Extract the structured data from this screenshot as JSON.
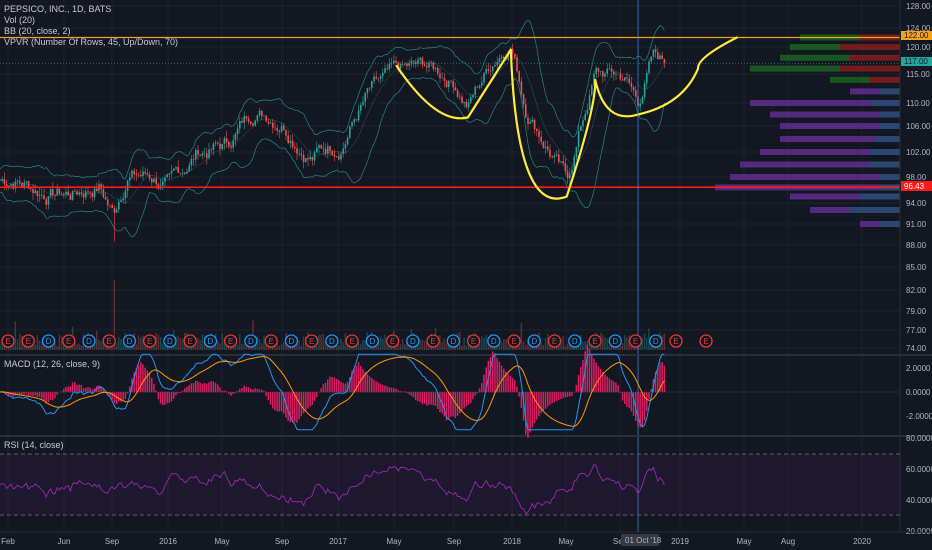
{
  "main_pane": {
    "symbol": "PEPSICO, INC., 1D, BATS",
    "indicators": [
      "Vol (20)",
      "BB (20, close, 2)",
      "VPVR (Number Of Rows, 45, Up/Down, 70)"
    ],
    "y_ticks": [
      "128.00",
      "124.00",
      "120.00",
      "115.00",
      "110.00",
      "106.00",
      "102.00",
      "98.00",
      "94.00",
      "91.00",
      "88.00",
      "85.00",
      "82.00",
      "79.00",
      "77.00",
      "74.00"
    ],
    "price_labels": {
      "resistance": "122.00",
      "current": "117.00",
      "support": "96.43"
    },
    "earnings_markers": [
      "E",
      "E",
      "D",
      "E",
      "D",
      "E",
      "D",
      "E",
      "D",
      "E",
      "D",
      "E",
      "D",
      "E",
      "D",
      "E",
      "D",
      "E",
      "D",
      "E",
      "D",
      "E",
      "D",
      "E",
      "D",
      "E",
      "D",
      "E",
      "D",
      "E",
      "D",
      "E",
      "D",
      "E"
    ]
  },
  "macd_pane": {
    "label": "MACD (12, 26, close, 9)",
    "y_ticks": [
      "2.0000",
      "0.0000",
      "-2.0000"
    ]
  },
  "rsi_pane": {
    "label": "RSI (14, close)",
    "y_ticks": [
      "80.0000",
      "60.0000",
      "40.0000",
      "20.0000"
    ]
  },
  "x_axis": {
    "ticks": [
      "Feb",
      "Jun",
      "Sep",
      "2016",
      "May",
      "Sep",
      "2017",
      "May",
      "Sep",
      "2018",
      "May",
      "Sep",
      "2019",
      "May",
      "Aug",
      "2020"
    ],
    "crosshair_label": "01 Oct '18"
  },
  "colors": {
    "background": "#131722",
    "up": "#26a69a",
    "down": "#ef5350",
    "pattern": "#ffeb3b",
    "resistance": "#f7a21b",
    "support": "#ff1a1a",
    "bb": "#26a69a",
    "macd": "#2196f3",
    "signal": "#ff9800",
    "histogram": "#ff1f6f",
    "rsi": "#9c27b0"
  },
  "chart_data": {
    "type": "candlestick",
    "title": "PEPSICO, INC., 1D, BATS",
    "ylim": [
      74,
      129
    ],
    "resistance_level": 122.0,
    "support_level": 96.43,
    "current_price": 117.0,
    "pattern": "inverse head and shoulders",
    "pattern_points": [
      {
        "date": "2017-05",
        "price": 116.5
      },
      {
        "date": "2017-10",
        "price": 107.5
      },
      {
        "date": "2018-01",
        "price": 119.5
      },
      {
        "date": "2018-05",
        "price": 95.0
      },
      {
        "date": "2018-07",
        "price": 114.0
      },
      {
        "date": "2018-10",
        "price": 108.0
      },
      {
        "date": "2019-05",
        "price": 122.0
      }
    ],
    "series": [
      {
        "points": [
          {
            "date": "2015-01",
            "price": 97.5
          },
          {
            "date": "2015-02",
            "price": 98.0
          },
          {
            "date": "2015-04",
            "price": 96.0
          },
          {
            "date": "2015-06",
            "price": 95.5
          },
          {
            "date": "2015-08",
            "price": 97.0
          },
          {
            "date": "2015-09",
            "price": 92.5
          },
          {
            "date": "2015-10",
            "price": 99.0
          },
          {
            "date": "2015-12",
            "price": 98.0
          },
          {
            "date": "2016-01",
            "price": 96.0
          },
          {
            "date": "2016-03",
            "price": 102.0
          },
          {
            "date": "2016-05",
            "price": 103.0
          },
          {
            "date": "2016-07",
            "price": 109.0
          },
          {
            "date": "2016-09",
            "price": 107.5
          },
          {
            "date": "2016-11",
            "price": 102.0
          },
          {
            "date": "2017-01",
            "price": 104.0
          },
          {
            "date": "2017-03",
            "price": 111.5
          },
          {
            "date": "2017-05",
            "price": 114.5
          },
          {
            "date": "2017-07",
            "price": 116.0
          },
          {
            "date": "2017-09",
            "price": 114.0
          },
          {
            "date": "2017-10",
            "price": 110.0
          },
          {
            "date": "2017-12",
            "price": 118.5
          },
          {
            "date": "2018-01",
            "price": 121.5
          },
          {
            "date": "2018-02",
            "price": 110.0
          },
          {
            "date": "2018-04",
            "price": 102.0
          },
          {
            "date": "2018-05",
            "price": 97.0
          },
          {
            "date": "2018-06",
            "price": 106.0
          },
          {
            "date": "2018-07",
            "price": 115.0
          },
          {
            "date": "2018-09",
            "price": 114.5
          },
          {
            "date": "2018-10",
            "price": 110.0
          },
          {
            "date": "2018-11",
            "price": 118.0
          },
          {
            "date": "2018-12",
            "price": 117.0
          }
        ]
      }
    ],
    "macd": {
      "ylim": [
        -3,
        3
      ]
    },
    "rsi": {
      "ylim": [
        18,
        82
      ],
      "bands": [
        70,
        30
      ]
    }
  }
}
